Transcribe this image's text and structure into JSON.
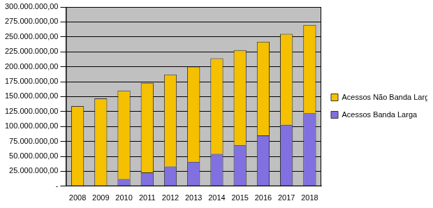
{
  "chart_data": {
    "type": "bar",
    "categories": [
      "2008",
      "2009",
      "2010",
      "2011",
      "2012",
      "2013",
      "2014",
      "2015",
      "2016",
      "2017",
      "2018"
    ],
    "series": [
      {
        "name": "Acessos Banda Larga",
        "color": "#8070e0",
        "values": [
          0,
          1000000,
          12000000,
          23000000,
          33000000,
          41000000,
          54000000,
          69000000,
          85000000,
          103000000,
          122000000
        ]
      },
      {
        "name": "Acessos Não Banda Larga",
        "color": "#f5c000",
        "values": [
          134000000,
          146000000,
          148000000,
          150000000,
          154000000,
          159000000,
          160000000,
          159000000,
          157000000,
          152000000,
          148000000
        ]
      }
    ],
    "stacked": true,
    "ylim": [
      0,
      300000000
    ],
    "yticks": [
      {
        "value": 0,
        "label": "-"
      },
      {
        "value": 25000000,
        "label": "25.000.000,00"
      },
      {
        "value": 50000000,
        "label": "50.000.000,00"
      },
      {
        "value": 75000000,
        "label": "75.000.000,00"
      },
      {
        "value": 100000000,
        "label": "100.000.000,00"
      },
      {
        "value": 125000000,
        "label": "125.000.000,00"
      },
      {
        "value": 150000000,
        "label": "150.000.000,00"
      },
      {
        "value": 175000000,
        "label": "175.000.000,00"
      },
      {
        "value": 200000000,
        "label": "200.000.000,00"
      },
      {
        "value": 225000000,
        "label": "225.000.000,00"
      },
      {
        "value": 250000000,
        "label": "250.000.000,00"
      },
      {
        "value": 275000000,
        "label": "275.000.000,00"
      },
      {
        "value": 300000000,
        "label": "300.000.000,00"
      }
    ],
    "grid": true,
    "legend": "right"
  }
}
